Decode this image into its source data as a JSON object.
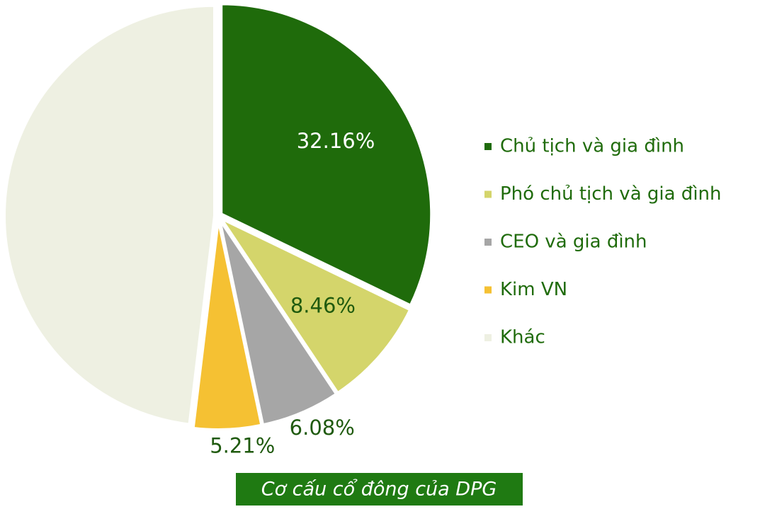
{
  "chart_data": {
    "type": "pie",
    "categories": [
      "Chủ tịch và gia đình",
      "Phó chủ tịch và gia đình",
      "CEO và gia đình",
      "Kim VN",
      "Khác"
    ],
    "values": [
      32.16,
      8.46,
      6.08,
      5.21,
      48.09
    ],
    "value_labels": [
      "32.16%",
      "8.46%",
      "6.08%",
      "5.21%",
      null
    ],
    "colors": [
      "#1f6b0b",
      "#d4d56b",
      "#a6a6a6",
      "#f5c133",
      "#eef0e2"
    ],
    "label_colors": [
      "#ffffff",
      "#1f5a0e",
      "#1f5a0e",
      "#1f5a0e",
      null
    ],
    "legend": "right",
    "caption": "Cơ cấu cổ đông của DPG"
  }
}
